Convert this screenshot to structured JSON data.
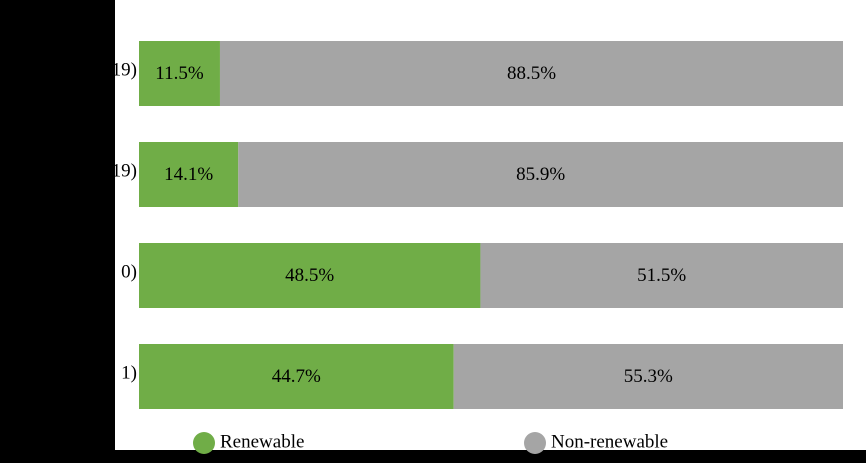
{
  "chart_data": {
    "type": "stacked-barh",
    "categories": [
      "19)",
      "19)",
      "0)",
      "1)"
    ],
    "series": [
      {
        "name": "Renewable",
        "color": "#70ad47",
        "values": [
          11.5,
          14.1,
          48.5,
          44.7
        ],
        "value_labels": [
          "11.5%",
          "14.1%",
          "48.5%",
          "44.7%"
        ]
      },
      {
        "name": "Non-renewable",
        "color": "#a5a5a5",
        "values": [
          88.5,
          85.9,
          51.5,
          55.3
        ],
        "value_labels": [
          "88.5%",
          "85.9%",
          "51.5%",
          "55.3%"
        ]
      }
    ],
    "xlim": [
      0,
      100
    ]
  }
}
